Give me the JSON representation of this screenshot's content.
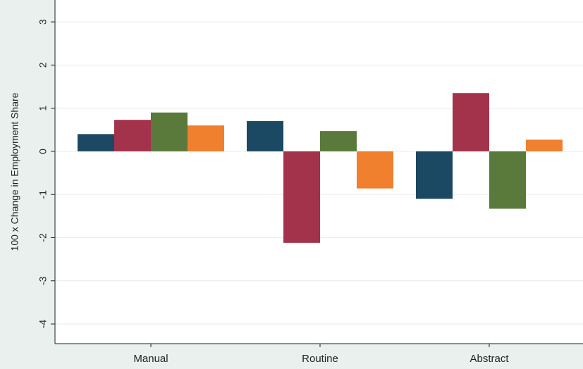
{
  "chart_data": {
    "type": "bar",
    "y_label": "100 x Change in Employment Share",
    "categories": [
      "Manual",
      "Routine",
      "Abstract"
    ],
    "series": [
      {
        "color": "#1b4862",
        "values": [
          0.4,
          0.7,
          -1.1
        ]
      },
      {
        "color": "#a2334a",
        "values": [
          0.73,
          -2.12,
          1.35
        ]
      },
      {
        "color": "#5a7a3b",
        "values": [
          0.9,
          0.47,
          -1.33
        ]
      },
      {
        "color": "#f07f2e",
        "values": [
          0.6,
          -0.86,
          0.27
        ]
      }
    ],
    "ylim": [
      -4.44,
      3.5
    ],
    "yticks": [
      -4,
      -3,
      -2,
      -1,
      0,
      1,
      2,
      3
    ],
    "grid": true
  }
}
